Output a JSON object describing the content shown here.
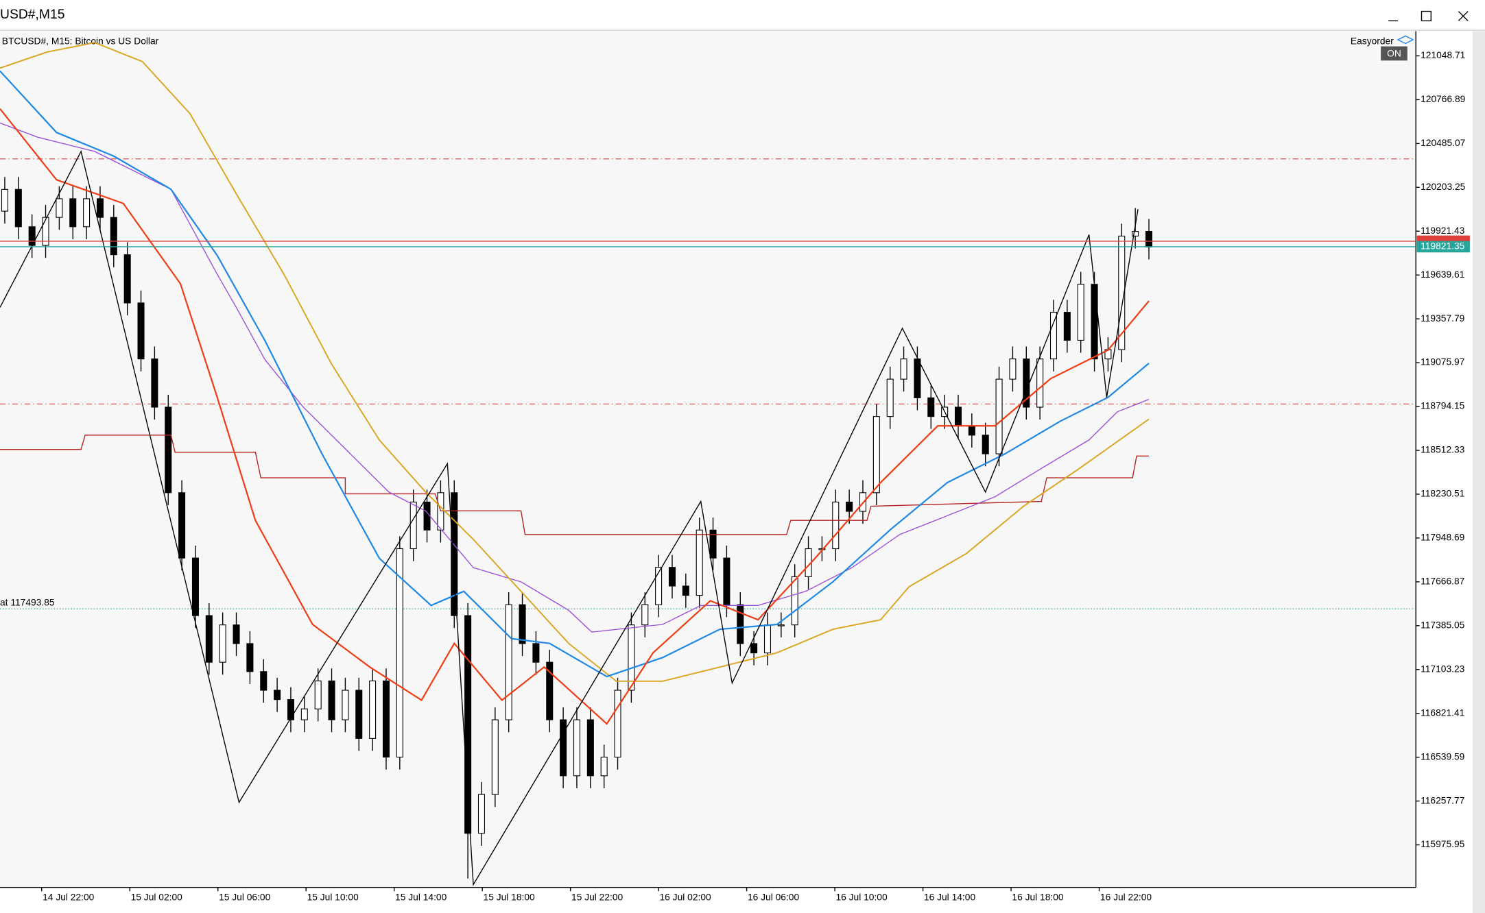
{
  "window": {
    "title": "USD#,M15"
  },
  "toolbar": {
    "label": "Easyorder",
    "button": "ON"
  },
  "chart_data": {
    "type": "candlestick",
    "title": "BTCUSD#, M15:  Bitcoin vs US Dollar",
    "up_color": "#ffffff",
    "down_color": "#000000",
    "edge_color": "#000000",
    "open": [
      120050,
      120190,
      119950,
      119830,
      120010,
      120130,
      119950,
      120130,
      120010,
      119770,
      119460,
      119100,
      118790,
      118240,
      117820,
      117450,
      117150,
      117390,
      117270,
      117090,
      116970,
      116910,
      116780,
      116850,
      117030,
      116780,
      116970,
      116660,
      117030,
      116540,
      117880,
      118180,
      118000,
      118240,
      117450,
      116050,
      116300,
      116780,
      117520,
      117270,
      117150,
      116780,
      116420,
      116780,
      116420,
      116540,
      116970,
      117390,
      117520,
      117760,
      117640,
      117580,
      118000,
      117820,
      117520,
      117270,
      117210,
      117390,
      117390,
      117700,
      117880,
      117880,
      118180,
      118120,
      118240,
      118730,
      118970,
      119100,
      118850,
      118730,
      118790,
      118670,
      118610,
      118490,
      118970,
      119100,
      118790,
      119100,
      119400,
      119220,
      119580,
      119100,
      119160,
      119890,
      119920
    ],
    "high": [
      120270,
      120270,
      120030,
      120090,
      120210,
      120210,
      120210,
      120210,
      120090,
      119850,
      119540,
      119180,
      118870,
      118320,
      117900,
      117530,
      117470,
      117470,
      117350,
      117170,
      117050,
      116990,
      116930,
      117110,
      117110,
      117050,
      117050,
      117110,
      117110,
      117960,
      118260,
      118260,
      118320,
      118320,
      117530,
      116380,
      116860,
      117600,
      117600,
      117350,
      117230,
      116860,
      116860,
      116860,
      116620,
      117050,
      117470,
      117600,
      117840,
      117840,
      117720,
      118080,
      118080,
      117900,
      117600,
      117350,
      117470,
      117470,
      117780,
      117960,
      117960,
      118260,
      118260,
      118320,
      118810,
      119050,
      119180,
      119180,
      118930,
      118870,
      118870,
      118750,
      118690,
      119050,
      119180,
      119180,
      119180,
      119480,
      119480,
      119660,
      119660,
      119240,
      119970,
      120070,
      120000
    ],
    "low": [
      119970,
      119870,
      119750,
      119750,
      119930,
      119870,
      119870,
      119930,
      119690,
      119380,
      119020,
      118710,
      118160,
      117740,
      117370,
      117070,
      117070,
      117190,
      117010,
      116890,
      116830,
      116700,
      116700,
      116770,
      116700,
      116700,
      116580,
      116580,
      116460,
      116460,
      117800,
      117920,
      117920,
      117370,
      115760,
      115970,
      116220,
      116700,
      117190,
      117070,
      116700,
      116340,
      116340,
      116340,
      116340,
      116460,
      116890,
      117310,
      117440,
      117560,
      117500,
      117500,
      117740,
      117440,
      117190,
      117130,
      117130,
      117310,
      117310,
      117620,
      117800,
      117800,
      118040,
      118040,
      118160,
      118650,
      118890,
      118770,
      118650,
      118650,
      118590,
      118530,
      118410,
      118410,
      118890,
      118710,
      118710,
      119020,
      119140,
      119140,
      119020,
      119020,
      119080,
      119810,
      119740
    ],
    "close": [
      120190,
      119950,
      119830,
      120010,
      120130,
      119950,
      120130,
      120010,
      119770,
      119460,
      119100,
      118790,
      118240,
      117820,
      117450,
      117150,
      117390,
      117270,
      117090,
      116970,
      116910,
      116780,
      116850,
      117030,
      116780,
      116970,
      116660,
      117030,
      116540,
      117880,
      118180,
      118000,
      118240,
      117450,
      116050,
      116300,
      116780,
      117520,
      117270,
      117150,
      116780,
      116420,
      116780,
      116420,
      116540,
      116970,
      117390,
      117520,
      117760,
      117640,
      117580,
      118000,
      117820,
      117520,
      117270,
      117210,
      117390,
      117390,
      117700,
      117880,
      117880,
      118180,
      118120,
      118240,
      118730,
      118970,
      119100,
      118850,
      118730,
      118790,
      118670,
      118610,
      118490,
      118970,
      119100,
      118790,
      119100,
      119400,
      119220,
      119580,
      119100,
      119160,
      119890,
      119920,
      119820
    ],
    "xlim": [
      -0.35,
      103.6
    ],
    "ylim": [
      115702,
      121207
    ],
    "xticks": [
      {
        "value": 2.71,
        "label": "14 Jul 22:00"
      },
      {
        "value": 9.18,
        "label": "15 Jul 02:00"
      },
      {
        "value": 15.65,
        "label": "15 Jul 06:00"
      },
      {
        "value": 22.12,
        "label": "15 Jul 10:00"
      },
      {
        "value": 28.59,
        "label": "15 Jul 14:00"
      },
      {
        "value": 35.06,
        "label": "15 Jul 18:00"
      },
      {
        "value": 41.53,
        "label": "15 Jul 22:00"
      },
      {
        "value": 48.0,
        "label": "16 Jul 02:00"
      },
      {
        "value": 54.47,
        "label": "16 Jul 06:00"
      },
      {
        "value": 60.94,
        "label": "16 Jul 10:00"
      },
      {
        "value": 67.41,
        "label": "16 Jul 14:00"
      },
      {
        "value": 73.88,
        "label": "16 Jul 18:00"
      },
      {
        "value": 80.35,
        "label": "16 Jul 22:00"
      }
    ],
    "yticks": [
      121048.71,
      120766.89,
      120485.07,
      120203.25,
      119921.43,
      119639.61,
      119357.79,
      119075.97,
      118794.15,
      118512.33,
      118230.51,
      117948.69,
      117666.87,
      117385.05,
      117103.23,
      116821.41,
      116539.59,
      116257.77,
      115975.95
    ],
    "lines": [
      {
        "color": "#b22222",
        "width": 1,
        "x": [
          -0.35,
          5.6,
          5.9,
          12.2,
          12.5,
          18.4,
          18.8,
          25.0,
          25.0,
          31.6,
          32.0,
          37.9,
          38.2,
          57.4,
          57.7,
          63.3,
          63.6,
          76.1,
          76.5,
          82.8,
          83.1,
          84.0
        ],
        "values": [
          118518,
          118518,
          118610,
          118610,
          118500,
          118500,
          118336,
          118336,
          118233,
          118233,
          118123,
          118123,
          117971,
          117971,
          118062,
          118062,
          118153,
          118184,
          118336,
          118336,
          118476,
          118476
        ]
      },
      {
        "color": "#9b4fd8",
        "width": 1,
        "x": [
          -0.35,
          2.4,
          6.6,
          12.2,
          15.6,
          17.0,
          19.1,
          21.9,
          24.7,
          28.2,
          30.9,
          34.4,
          37.9,
          41.4,
          43.1,
          48.3,
          51.1,
          55.3,
          58.8,
          62.2,
          65.7,
          69.2,
          72.7,
          76.1,
          79.6,
          81.7,
          84.0
        ],
        "values": [
          120617,
          120526,
          120434,
          120191,
          119644,
          119431,
          119096,
          118792,
          118548,
          118244,
          118123,
          117758,
          117667,
          117484,
          117344,
          117393,
          117515,
          117515,
          117606,
          117758,
          117971,
          118092,
          118214,
          118396,
          118579,
          118761,
          118840
        ]
      },
      {
        "color": "#daa520",
        "width": 1.4,
        "x": [
          -0.35,
          3.1,
          6.6,
          10.1,
          13.6,
          17.0,
          20.5,
          24.0,
          27.5,
          30.9,
          34.4,
          37.9,
          41.4,
          44.9,
          48.3,
          52.5,
          56.7,
          60.8,
          64.3,
          66.4,
          70.6,
          74.8,
          78.9,
          84.0
        ],
        "values": [
          120970,
          121073,
          121134,
          121012,
          120677,
          120161,
          119644,
          119066,
          118579,
          118244,
          117940,
          117606,
          117271,
          117028,
          117028,
          117119,
          117211,
          117362,
          117423,
          117636,
          117849,
          118153,
          118396,
          118713
        ]
      },
      {
        "color": "#1e88e5",
        "width": 1.6,
        "x": [
          -0.35,
          3.8,
          8.0,
          12.2,
          15.6,
          19.1,
          23.3,
          27.5,
          31.3,
          33.7,
          37.2,
          40.0,
          44.2,
          48.3,
          52.5,
          56.7,
          60.8,
          65.0,
          69.2,
          73.4,
          77.5,
          81.0,
          84.0
        ],
        "values": [
          120951,
          120556,
          120404,
          120191,
          119765,
          119218,
          118488,
          117818,
          117515,
          117606,
          117302,
          117271,
          117058,
          117180,
          117362,
          117393,
          117667,
          118001,
          118305,
          118488,
          118700,
          118853,
          119072
        ]
      },
      {
        "color": "#f03c14",
        "width": 1.6,
        "x": [
          -0.35,
          3.8,
          8.7,
          12.9,
          15.6,
          18.4,
          22.6,
          26.8,
          30.6,
          33.0,
          36.5,
          39.6,
          44.2,
          47.6,
          51.8,
          55.3,
          59.5,
          64.3,
          68.5,
          72.7,
          76.8,
          81.0,
          84.0
        ],
        "values": [
          120708,
          120252,
          120100,
          119583,
          118853,
          118062,
          117393,
          117119,
          116906,
          117271,
          116906,
          117119,
          116754,
          117211,
          117545,
          117423,
          117819,
          118305,
          118670,
          118670,
          118974,
          119157,
          119473
        ]
      },
      {
        "color": "#000000",
        "width": 1,
        "x": [
          -0.35,
          5.6,
          17.2,
          32.5,
          34.4,
          51.1,
          53.4,
          65.9,
          72.0,
          79.6,
          80.9,
          83.2
        ],
        "values": [
          119431,
          120434,
          116249,
          118427,
          115720,
          118184,
          117016,
          119297,
          118244,
          119899,
          118853,
          120063
        ]
      }
    ],
    "levels": [
      {
        "value": 120386,
        "color": "#e06060"
      },
      {
        "value": 118810,
        "color": "#e06060"
      }
    ],
    "bid": {
      "value": 119857,
      "color": "#e0403c"
    },
    "ask": {
      "value": 119821.35,
      "color": "#26a69a"
    },
    "alert": {
      "value": 117493.85,
      "label": "at 117493.85",
      "color": "#26a69a"
    }
  }
}
